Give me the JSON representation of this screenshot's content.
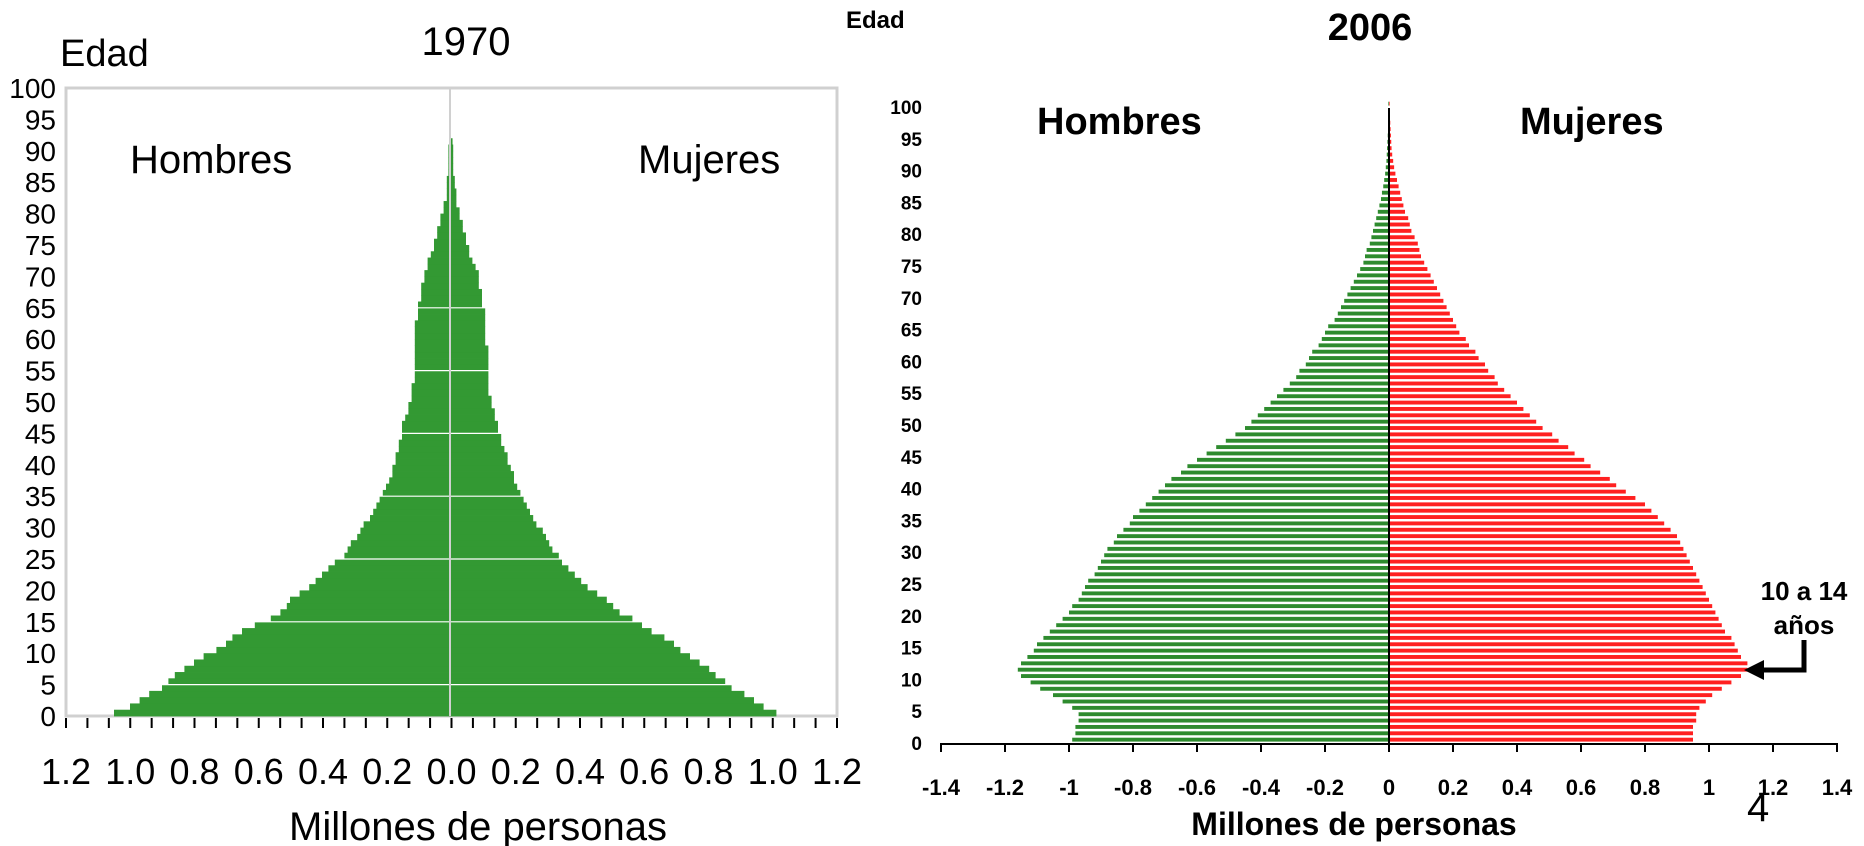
{
  "chart_data": [
    {
      "type": "bar",
      "title": "1970",
      "ylabel": "Edad",
      "xlabel": "Millones de personas",
      "left_label": "Hombres",
      "right_label": "Mujeres",
      "ylim": [
        0,
        100
      ],
      "xlim": [
        -1.2,
        1.2
      ],
      "y_ticks": [
        "0",
        "5",
        "10",
        "15",
        "20",
        "25",
        "30",
        "35",
        "40",
        "45",
        "50",
        "55",
        "60",
        "65",
        "70",
        "75",
        "80",
        "85",
        "90",
        "95",
        "100"
      ],
      "x_tick_labels": [
        "1.2",
        "1.0",
        "0.8",
        "0.6",
        "0.4",
        "0.2",
        "0.0",
        "0.2",
        "0.4",
        "0.6",
        "0.8",
        "1.0",
        "1.2"
      ],
      "colors": {
        "hombres": "#339933",
        "mujeres": "#339933"
      },
      "ages": [
        0,
        1,
        2,
        3,
        4,
        5,
        6,
        7,
        8,
        9,
        10,
        11,
        12,
        13,
        14,
        15,
        16,
        17,
        18,
        19,
        20,
        21,
        22,
        23,
        24,
        25,
        26,
        27,
        28,
        29,
        30,
        31,
        32,
        33,
        34,
        35,
        36,
        37,
        38,
        39,
        40,
        41,
        42,
        43,
        44,
        45,
        46,
        47,
        48,
        49,
        50,
        51,
        52,
        53,
        54,
        55,
        56,
        57,
        58,
        59,
        60,
        61,
        62,
        63,
        64,
        65,
        66,
        67,
        68,
        69,
        70,
        71,
        72,
        73,
        74,
        75,
        76,
        77,
        78,
        79,
        80,
        81,
        82,
        83,
        84,
        85,
        86,
        87,
        88,
        89,
        90,
        91
      ],
      "series": [
        {
          "name": "Hombres",
          "values": [
            1.05,
            1.0,
            0.97,
            0.94,
            0.9,
            0.88,
            0.86,
            0.83,
            0.8,
            0.77,
            0.73,
            0.7,
            0.68,
            0.65,
            0.61,
            0.56,
            0.53,
            0.51,
            0.5,
            0.47,
            0.44,
            0.42,
            0.4,
            0.38,
            0.36,
            0.33,
            0.32,
            0.31,
            0.29,
            0.28,
            0.27,
            0.25,
            0.24,
            0.23,
            0.22,
            0.21,
            0.2,
            0.19,
            0.18,
            0.18,
            0.17,
            0.17,
            0.16,
            0.16,
            0.15,
            0.15,
            0.15,
            0.14,
            0.13,
            0.13,
            0.12,
            0.12,
            0.12,
            0.11,
            0.11,
            0.11,
            0.11,
            0.11,
            0.11,
            0.11,
            0.11,
            0.11,
            0.11,
            0.1,
            0.1,
            0.1,
            0.09,
            0.09,
            0.09,
            0.08,
            0.08,
            0.07,
            0.07,
            0.06,
            0.05,
            0.05,
            0.04,
            0.04,
            0.03,
            0.03,
            0.02,
            0.02,
            0.01,
            0.01,
            0.01,
            0.01,
            0.005,
            0.005,
            0.005,
            0.005,
            0.005,
            0.003
          ]
        },
        {
          "name": "Mujeres",
          "values": [
            1.02,
            0.98,
            0.95,
            0.92,
            0.88,
            0.86,
            0.83,
            0.81,
            0.78,
            0.75,
            0.72,
            0.7,
            0.67,
            0.63,
            0.6,
            0.57,
            0.53,
            0.51,
            0.49,
            0.46,
            0.43,
            0.41,
            0.39,
            0.37,
            0.35,
            0.34,
            0.32,
            0.31,
            0.3,
            0.29,
            0.27,
            0.26,
            0.25,
            0.24,
            0.23,
            0.22,
            0.21,
            0.2,
            0.2,
            0.19,
            0.18,
            0.18,
            0.17,
            0.16,
            0.16,
            0.15,
            0.15,
            0.14,
            0.14,
            0.13,
            0.13,
            0.12,
            0.12,
            0.12,
            0.12,
            0.12,
            0.12,
            0.12,
            0.12,
            0.11,
            0.11,
            0.11,
            0.11,
            0.11,
            0.11,
            0.1,
            0.1,
            0.1,
            0.09,
            0.09,
            0.09,
            0.08,
            0.07,
            0.06,
            0.06,
            0.05,
            0.05,
            0.04,
            0.04,
            0.03,
            0.03,
            0.02,
            0.02,
            0.02,
            0.015,
            0.015,
            0.01,
            0.01,
            0.01,
            0.01,
            0.01,
            0.008
          ]
        }
      ],
      "grid": false
    },
    {
      "type": "bar",
      "title": "2006",
      "ylabel": "Edad",
      "xlabel": "Millones de personas",
      "left_label": "Hombres",
      "right_label": "Mujeres",
      "ylim": [
        0,
        100
      ],
      "xlim": [
        -1.4,
        1.4
      ],
      "y_ticks": [
        "0",
        "5",
        "10",
        "15",
        "20",
        "25",
        "30",
        "35",
        "40",
        "45",
        "50",
        "55",
        "60",
        "65",
        "70",
        "75",
        "80",
        "85",
        "90",
        "95",
        "100"
      ],
      "x_tick_labels": [
        "-1.4",
        "-1.2",
        "-1",
        "-0.8",
        "-0.6",
        "-0.4",
        "-0.2",
        "0",
        "0.2",
        "0.4",
        "0.6",
        "0.8",
        "1",
        "1.2",
        "1.4"
      ],
      "colors": {
        "hombres": "#2e8b2e",
        "mujeres": "#ff2020"
      },
      "annotation": {
        "text_line1": "10 a 14",
        "text_line2": "años",
        "age": 11
      },
      "ages": [
        0,
        1,
        2,
        3,
        4,
        5,
        6,
        7,
        8,
        9,
        10,
        11,
        12,
        13,
        14,
        15,
        16,
        17,
        18,
        19,
        20,
        21,
        22,
        23,
        24,
        25,
        26,
        27,
        28,
        29,
        30,
        31,
        32,
        33,
        34,
        35,
        36,
        37,
        38,
        39,
        40,
        41,
        42,
        43,
        44,
        45,
        46,
        47,
        48,
        49,
        50,
        51,
        52,
        53,
        54,
        55,
        56,
        57,
        58,
        59,
        60,
        61,
        62,
        63,
        64,
        65,
        66,
        67,
        68,
        69,
        70,
        71,
        72,
        73,
        74,
        75,
        76,
        77,
        78,
        79,
        80,
        81,
        82,
        83,
        84,
        85,
        86,
        87,
        88,
        89,
        90,
        91,
        92,
        93,
        94,
        95,
        96,
        97,
        98,
        99,
        100
      ],
      "series": [
        {
          "name": "Hombres",
          "values": [
            0.99,
            0.98,
            0.98,
            0.97,
            0.97,
            0.99,
            1.02,
            1.05,
            1.09,
            1.12,
            1.15,
            1.16,
            1.15,
            1.13,
            1.11,
            1.1,
            1.08,
            1.06,
            1.04,
            1.02,
            1.0,
            0.99,
            0.97,
            0.96,
            0.95,
            0.94,
            0.92,
            0.91,
            0.9,
            0.89,
            0.88,
            0.86,
            0.85,
            0.83,
            0.81,
            0.8,
            0.78,
            0.76,
            0.74,
            0.72,
            0.7,
            0.68,
            0.65,
            0.63,
            0.6,
            0.57,
            0.54,
            0.51,
            0.48,
            0.45,
            0.43,
            0.41,
            0.39,
            0.37,
            0.35,
            0.33,
            0.31,
            0.29,
            0.28,
            0.26,
            0.25,
            0.24,
            0.22,
            0.21,
            0.2,
            0.19,
            0.17,
            0.16,
            0.15,
            0.14,
            0.13,
            0.12,
            0.11,
            0.1,
            0.09,
            0.08,
            0.075,
            0.07,
            0.06,
            0.055,
            0.05,
            0.045,
            0.04,
            0.035,
            0.03,
            0.025,
            0.022,
            0.018,
            0.015,
            0.012,
            0.01,
            0.008,
            0.007,
            0.006,
            0.005,
            0.004,
            0.003,
            0.003,
            0.002,
            0.002,
            0.002
          ]
        },
        {
          "name": "Mujeres",
          "values": [
            0.95,
            0.95,
            0.95,
            0.96,
            0.96,
            0.97,
            0.99,
            1.01,
            1.04,
            1.07,
            1.1,
            1.12,
            1.12,
            1.1,
            1.09,
            1.08,
            1.07,
            1.05,
            1.04,
            1.03,
            1.02,
            1.01,
            1.0,
            0.99,
            0.98,
            0.97,
            0.96,
            0.95,
            0.94,
            0.93,
            0.92,
            0.91,
            0.9,
            0.88,
            0.86,
            0.84,
            0.82,
            0.8,
            0.77,
            0.74,
            0.71,
            0.69,
            0.66,
            0.63,
            0.61,
            0.58,
            0.56,
            0.53,
            0.51,
            0.48,
            0.46,
            0.44,
            0.42,
            0.4,
            0.38,
            0.36,
            0.34,
            0.33,
            0.31,
            0.3,
            0.28,
            0.27,
            0.25,
            0.24,
            0.22,
            0.21,
            0.2,
            0.19,
            0.18,
            0.17,
            0.16,
            0.15,
            0.14,
            0.13,
            0.12,
            0.11,
            0.1,
            0.095,
            0.09,
            0.08,
            0.07,
            0.065,
            0.06,
            0.05,
            0.045,
            0.04,
            0.035,
            0.03,
            0.025,
            0.02,
            0.016,
            0.013,
            0.01,
            0.008,
            0.007,
            0.006,
            0.005,
            0.004,
            0.003,
            0.003,
            0.002
          ]
        }
      ],
      "grid": false
    }
  ],
  "page_number": "4"
}
